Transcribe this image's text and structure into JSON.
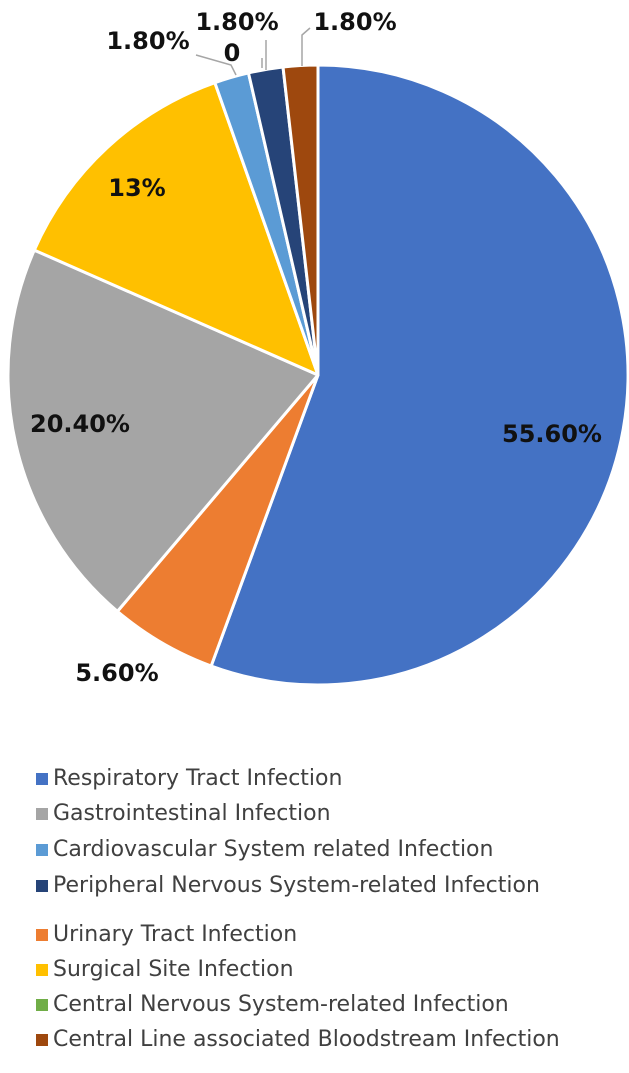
{
  "chart_data": {
    "type": "pie",
    "title": "",
    "start_angle_deg": 0,
    "direction": "clockwise",
    "slices": [
      {
        "label": "Respiratory Tract Infection",
        "value": 55.6,
        "data_label": "55.60%",
        "color": "#4472C4"
      },
      {
        "label": "Urinary Tract Infection",
        "value": 5.6,
        "data_label": "5.60%",
        "color": "#ED7D31"
      },
      {
        "label": "Gastrointestinal Infection",
        "value": 20.4,
        "data_label": "20.40%",
        "color": "#A5A5A5"
      },
      {
        "label": "Surgical Site Infection",
        "value": 13,
        "data_label": "13%",
        "color": "#FFC000"
      },
      {
        "label": "Cardiovascular System related Infection",
        "value": 1.8,
        "data_label": "1.80%",
        "color": "#5B9BD5"
      },
      {
        "label": "Central Nervous System-related Infection",
        "value": 0,
        "data_label": "0",
        "color": "#70AD47"
      },
      {
        "label": "Peripheral Nervous System-related Infection",
        "value": 1.8,
        "data_label": "1.80%",
        "color": "#264478"
      },
      {
        "label": "Central Line associated Bloodstream Infection",
        "value": 1.8,
        "data_label": "1.80%",
        "color": "#9E480E"
      }
    ],
    "legend": {
      "placement": "bottom",
      "entries": [
        {
          "label": "Respiratory Tract Infection",
          "color": "#4472C4"
        },
        {
          "label": "Gastrointestinal Infection",
          "color": "#A5A5A5"
        },
        {
          "label": "Cardiovascular System related Infection",
          "color": "#5B9BD5"
        },
        {
          "label": "Peripheral Nervous System-related Infection",
          "color": "#264478"
        },
        {
          "label": "Urinary Tract Infection",
          "color": "#ED7D31"
        },
        {
          "label": "Surgical Site Infection",
          "color": "#FFC000"
        },
        {
          "label": "Central Nervous System-related Infection",
          "color": "#70AD47"
        },
        {
          "label": "Central Line associated Bloodstream Infection",
          "color": "#9E480E"
        }
      ]
    }
  }
}
